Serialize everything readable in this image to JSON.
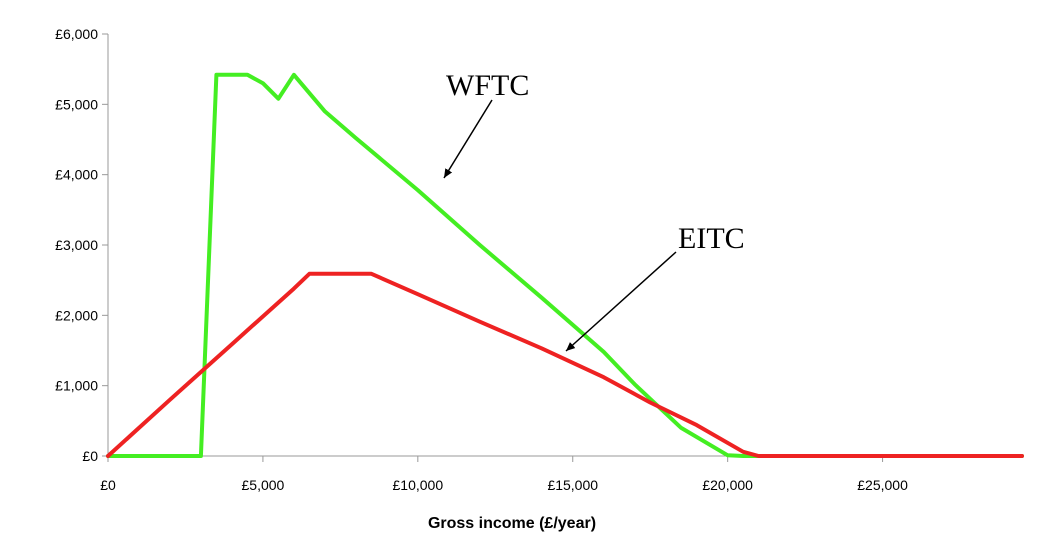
{
  "chart_data": {
    "type": "line",
    "title": "",
    "xlabel": "Gross income (£/year)",
    "ylabel": "",
    "xlim": [
      0,
      29500
    ],
    "ylim": [
      0,
      6000
    ],
    "grid": false,
    "legend": "none",
    "x_ticks": [
      {
        "value": 0,
        "label": "£0"
      },
      {
        "value": 5000,
        "label": "£5,000"
      },
      {
        "value": 10000,
        "label": "£10,000"
      },
      {
        "value": 15000,
        "label": "£15,000"
      },
      {
        "value": 20000,
        "label": "£20,000"
      },
      {
        "value": 25000,
        "label": "£25,000"
      }
    ],
    "y_ticks": [
      {
        "value": 0,
        "label": "£0"
      },
      {
        "value": 1000,
        "label": "£1,000"
      },
      {
        "value": 2000,
        "label": "£2,000"
      },
      {
        "value": 3000,
        "label": "£3,000"
      },
      {
        "value": 4000,
        "label": "£4,000"
      },
      {
        "value": 5000,
        "label": "£5,000"
      },
      {
        "value": 6000,
        "label": "£6,000"
      }
    ],
    "series": [
      {
        "id": "wftc",
        "color": "#44ee22",
        "x": [
          0,
          3000,
          3500,
          4500,
          5000,
          5500,
          6000,
          7000,
          8000,
          10000,
          12000,
          14000,
          16000,
          17000,
          18500,
          20000,
          20500,
          29500
        ],
        "y": [
          0,
          0,
          5420,
          5420,
          5300,
          5080,
          5420,
          4900,
          4520,
          3780,
          3000,
          2250,
          1480,
          1020,
          400,
          10,
          0,
          0
        ]
      },
      {
        "id": "eitc",
        "color": "#ee2222",
        "x": [
          0,
          2000,
          4000,
          6000,
          6500,
          8500,
          10000,
          12000,
          14000,
          16000,
          17500,
          19000,
          20500,
          21000,
          29500
        ],
        "y": [
          0,
          800,
          1590,
          2380,
          2590,
          2590,
          2300,
          1910,
          1530,
          1120,
          760,
          440,
          60,
          0,
          0
        ]
      }
    ],
    "annotations": [
      {
        "id": "wftc-label",
        "text": "WFTC",
        "series": "wftc"
      },
      {
        "id": "eitc-label",
        "text": "EITC",
        "series": "eitc"
      }
    ]
  }
}
